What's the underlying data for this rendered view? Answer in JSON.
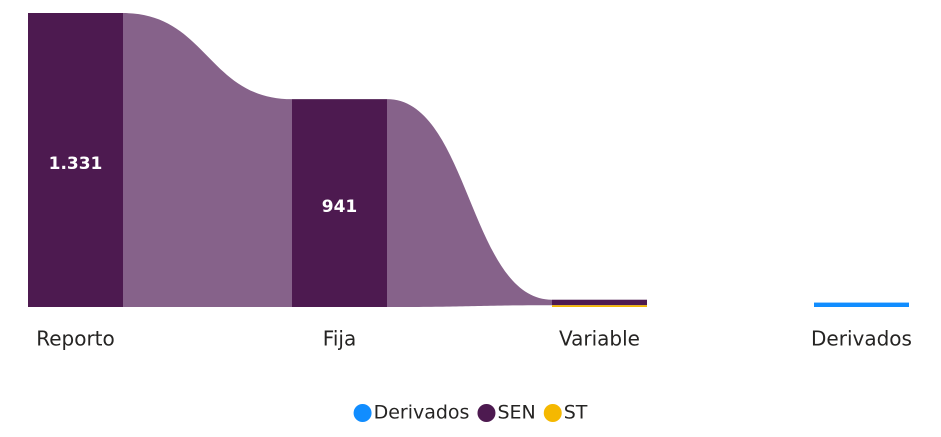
{
  "chart_data": {
    "type": "ribbon",
    "categories": [
      "Reporto",
      "Fija",
      "Variable",
      "Derivados"
    ],
    "series": [
      {
        "name": "Derivados",
        "color": "#118dff",
        "values": [
          null,
          null,
          null,
          20
        ]
      },
      {
        "name": "SEN",
        "color": "#4d1a50",
        "ribbon_color": "#86628a",
        "values": [
          1331,
          941,
          25,
          null
        ],
        "value_labels": [
          "1.331",
          "941",
          null,
          null
        ]
      },
      {
        "name": "ST",
        "color": "#f5b800",
        "values": [
          null,
          null,
          8,
          null
        ]
      }
    ],
    "ylim": [
      0,
      1331
    ],
    "legend": "bottom"
  }
}
